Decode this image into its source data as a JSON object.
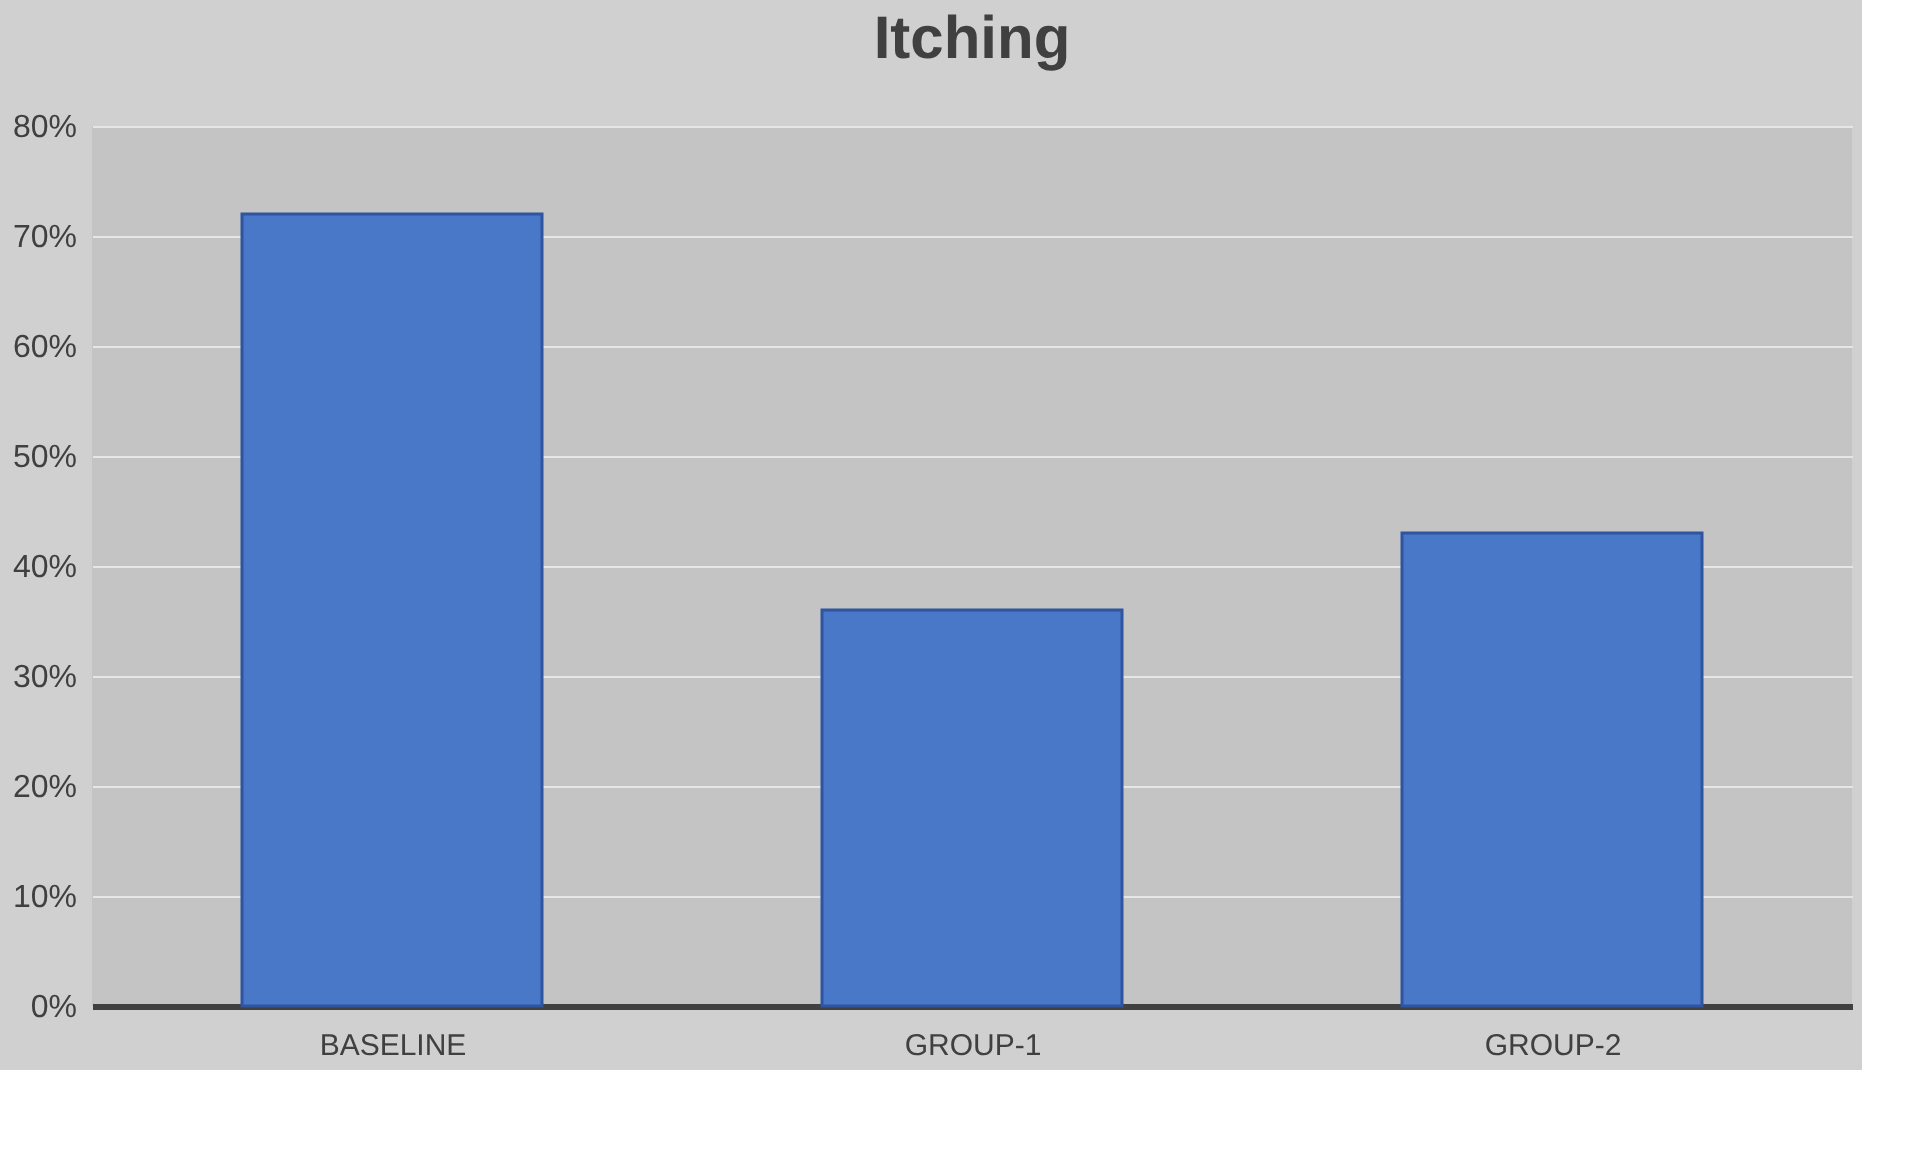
{
  "chart_data": {
    "type": "bar",
    "title": "Itching",
    "categories": [
      "BASELINE",
      "GROUP-1",
      "GROUP-2"
    ],
    "values": [
      0.72,
      0.36,
      0.43
    ],
    "color": "#4a78c8",
    "ylim": [
      0,
      0.8
    ],
    "yticks": [
      {
        "value": 0,
        "label": "0%"
      },
      {
        "value": 0.1,
        "label": "10%"
      },
      {
        "value": 0.2,
        "label": "20%"
      },
      {
        "value": 0.3,
        "label": "30%"
      },
      {
        "value": 0.4,
        "label": "40%"
      },
      {
        "value": 0.5,
        "label": "50%"
      },
      {
        "value": 0.6,
        "label": "60%"
      },
      {
        "value": 0.7,
        "label": "70%"
      },
      {
        "value": 0.8,
        "label": "80%"
      }
    ],
    "grid": "y"
  }
}
